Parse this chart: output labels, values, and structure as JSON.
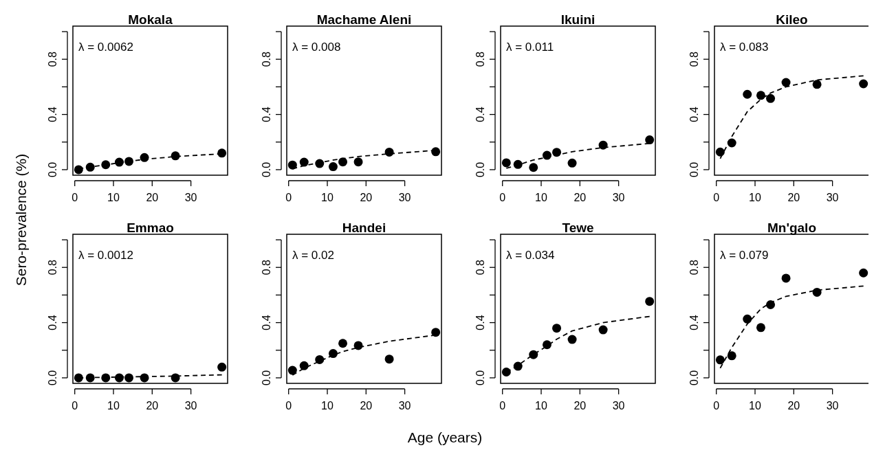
{
  "chart_data": [
    {
      "type": "scatter",
      "title": "Mokala",
      "ylabel": "Sero-prevalence (%)",
      "annotations": [
        "λ = 0.0062"
      ],
      "xlim": [
        -0.48,
        39.48
      ],
      "ylim": [
        -0.04,
        1.04
      ],
      "xticks": [
        0,
        10,
        20,
        30
      ],
      "yticks": [
        {
          "value": 0,
          "label": "0.0"
        },
        {
          "value": 0.2,
          "label": null
        },
        {
          "value": 0.4,
          "label": "0.4"
        },
        {
          "value": 0.6,
          "label": null
        },
        {
          "value": 0.8,
          "label": "0.8"
        },
        {
          "value": 1,
          "label": null
        }
      ],
      "x": [
        1,
        4,
        8,
        11.5,
        14,
        18,
        26,
        38
      ],
      "series": [
        {
          "marker": "circle",
          "color": "#000000",
          "values": [
            0.0,
            0.018,
            0.036,
            0.054,
            0.06,
            0.088,
            0.1,
            0.12
          ]
        },
        {
          "type": "line",
          "marker": "none",
          "color": "#000000",
          "line_style": "dashed",
          "values": [
            0.005,
            0.02,
            0.035,
            0.05,
            0.06,
            0.075,
            0.095,
            0.115
          ]
        }
      ]
    },
    {
      "type": "scatter",
      "title": "Machame Aleni",
      "annotations": [
        "λ = 0.008"
      ],
      "xlim": [
        -0.48,
        39.48
      ],
      "ylim": [
        -0.04,
        1.04
      ],
      "xticks": [
        0,
        10,
        20,
        30
      ],
      "yticks": [
        {
          "value": 0,
          "label": "0.0"
        },
        {
          "value": 0.2,
          "label": null
        },
        {
          "value": 0.4,
          "label": "0.4"
        },
        {
          "value": 0.6,
          "label": null
        },
        {
          "value": 0.8,
          "label": "0.8"
        },
        {
          "value": 1,
          "label": null
        }
      ],
      "x": [
        1,
        4,
        8,
        11.5,
        14,
        18,
        26,
        38
      ],
      "series": [
        {
          "marker": "circle",
          "color": "#000000",
          "values": [
            0.034,
            0.054,
            0.044,
            0.022,
            0.056,
            0.056,
            0.127,
            0.13
          ]
        },
        {
          "type": "line",
          "marker": "none",
          "color": "#000000",
          "line_style": "dashed",
          "values": [
            0.005,
            0.03,
            0.05,
            0.07,
            0.08,
            0.095,
            0.115,
            0.14
          ]
        }
      ]
    },
    {
      "type": "scatter",
      "title": "Ikuini",
      "annotations": [
        "λ = 0.011"
      ],
      "xlim": [
        -0.48,
        39.48
      ],
      "ylim": [
        -0.04,
        1.04
      ],
      "xticks": [
        0,
        10,
        20,
        30
      ],
      "yticks": [
        {
          "value": 0,
          "label": "0.0"
        },
        {
          "value": 0.2,
          "label": null
        },
        {
          "value": 0.4,
          "label": "0.4"
        },
        {
          "value": 0.6,
          "label": null
        },
        {
          "value": 0.8,
          "label": "0.8"
        },
        {
          "value": 1,
          "label": null
        }
      ],
      "x": [
        1,
        4,
        8,
        11.5,
        14,
        18,
        26,
        38
      ],
      "series": [
        {
          "marker": "circle",
          "color": "#000000",
          "values": [
            0.05,
            0.038,
            0.016,
            0.104,
            0.126,
            0.048,
            0.178,
            0.216
          ]
        },
        {
          "type": "line",
          "marker": "none",
          "color": "#000000",
          "line_style": "dashed",
          "values": [
            0.01,
            0.034,
            0.07,
            0.09,
            0.105,
            0.13,
            0.16,
            0.19
          ]
        }
      ]
    },
    {
      "type": "scatter",
      "title": "Kileo",
      "annotations": [
        "λ = 0.083"
      ],
      "xlim": [
        -0.48,
        39.48
      ],
      "ylim": [
        -0.04,
        1.04
      ],
      "xticks": [
        0,
        10,
        20,
        30
      ],
      "yticks": [
        {
          "value": 0,
          "label": "0.0"
        },
        {
          "value": 0.2,
          "label": null
        },
        {
          "value": 0.4,
          "label": "0.4"
        },
        {
          "value": 0.6,
          "label": null
        },
        {
          "value": 0.8,
          "label": "0.8"
        },
        {
          "value": 1,
          "label": null
        }
      ],
      "x": [
        1,
        4,
        8,
        11.5,
        14,
        18,
        26,
        38
      ],
      "series": [
        {
          "marker": "circle",
          "color": "#000000",
          "values": [
            0.128,
            0.194,
            0.546,
            0.538,
            0.516,
            0.632,
            0.618,
            0.622
          ]
        },
        {
          "type": "line",
          "marker": "none",
          "color": "#000000",
          "line_style": "dashed",
          "values": [
            0.08,
            0.24,
            0.42,
            0.51,
            0.555,
            0.6,
            0.65,
            0.68
          ]
        }
      ]
    },
    {
      "type": "scatter",
      "title": "Emmao",
      "annotations": [
        "λ = 0.0012"
      ],
      "xlim": [
        -0.48,
        39.48
      ],
      "ylim": [
        -0.04,
        1.04
      ],
      "xticks": [
        0,
        10,
        20,
        30
      ],
      "yticks": [
        {
          "value": 0,
          "label": "0.0"
        },
        {
          "value": 0.2,
          "label": null
        },
        {
          "value": 0.4,
          "label": "0.4"
        },
        {
          "value": 0.6,
          "label": null
        },
        {
          "value": 0.8,
          "label": "0.8"
        },
        {
          "value": 1,
          "label": null
        }
      ],
      "x": [
        1,
        4,
        8,
        11.5,
        14,
        18,
        26,
        38
      ],
      "series": [
        {
          "marker": "circle",
          "color": "#000000",
          "values": [
            0.0,
            0.0,
            0.0,
            0.0,
            0.0,
            0.0,
            0.0,
            0.078
          ]
        },
        {
          "type": "line",
          "marker": "none",
          "color": "#000000",
          "line_style": "dashed",
          "values": [
            0.0,
            0.002,
            0.004,
            0.006,
            0.007,
            0.009,
            0.013,
            0.022
          ]
        }
      ]
    },
    {
      "type": "scatter",
      "title": "Handei",
      "xlabel": "Age (years)",
      "annotations": [
        "λ = 0.02"
      ],
      "xlim": [
        -0.48,
        39.48
      ],
      "ylim": [
        -0.04,
        1.04
      ],
      "xticks": [
        0,
        10,
        20,
        30
      ],
      "yticks": [
        {
          "value": 0,
          "label": "0.0"
        },
        {
          "value": 0.2,
          "label": null
        },
        {
          "value": 0.4,
          "label": "0.4"
        },
        {
          "value": 0.6,
          "label": null
        },
        {
          "value": 0.8,
          "label": "0.8"
        },
        {
          "value": 1,
          "label": null
        }
      ],
      "x": [
        1,
        4,
        8,
        11.5,
        14,
        18,
        26,
        38
      ],
      "series": [
        {
          "marker": "circle",
          "color": "#000000",
          "values": [
            0.054,
            0.088,
            0.132,
            0.176,
            0.25,
            0.234,
            0.136,
            0.33
          ]
        },
        {
          "type": "line",
          "marker": "none",
          "color": "#000000",
          "line_style": "dashed",
          "values": [
            0.02,
            0.07,
            0.12,
            0.165,
            0.19,
            0.22,
            0.265,
            0.31
          ]
        }
      ]
    },
    {
      "type": "scatter",
      "title": "Tewe",
      "annotations": [
        "λ = 0.034"
      ],
      "xlim": [
        -0.48,
        39.48
      ],
      "ylim": [
        -0.04,
        1.04
      ],
      "xticks": [
        0,
        10,
        20,
        30
      ],
      "yticks": [
        {
          "value": 0,
          "label": "0.0"
        },
        {
          "value": 0.2,
          "label": null
        },
        {
          "value": 0.4,
          "label": "0.4"
        },
        {
          "value": 0.6,
          "label": null
        },
        {
          "value": 0.8,
          "label": "0.8"
        },
        {
          "value": 1,
          "label": null
        }
      ],
      "x": [
        1,
        4,
        8,
        11.5,
        14,
        18,
        26,
        38
      ],
      "series": [
        {
          "marker": "circle",
          "color": "#000000",
          "values": [
            0.042,
            0.084,
            0.168,
            0.24,
            0.36,
            0.278,
            0.348,
            0.554
          ]
        },
        {
          "type": "line",
          "marker": "none",
          "color": "#000000",
          "line_style": "dashed",
          "values": [
            0.04,
            0.09,
            0.17,
            0.23,
            0.28,
            0.34,
            0.4,
            0.445
          ]
        }
      ]
    },
    {
      "type": "scatter",
      "title": "Mn'galo",
      "annotations": [
        "λ = 0.079"
      ],
      "xlim": [
        -0.48,
        39.48
      ],
      "ylim": [
        -0.04,
        1.04
      ],
      "xticks": [
        0,
        10,
        20,
        30
      ],
      "yticks": [
        {
          "value": 0,
          "label": "0.0"
        },
        {
          "value": 0.2,
          "label": null
        },
        {
          "value": 0.4,
          "label": "0.4"
        },
        {
          "value": 0.6,
          "label": null
        },
        {
          "value": 0.8,
          "label": "0.8"
        },
        {
          "value": 1,
          "label": null
        }
      ],
      "x": [
        1,
        4,
        8,
        11.5,
        14,
        18,
        26,
        38
      ],
      "series": [
        {
          "marker": "circle",
          "color": "#000000",
          "values": [
            0.13,
            0.16,
            0.426,
            0.364,
            0.53,
            0.722,
            0.62,
            0.76
          ]
        },
        {
          "type": "line",
          "marker": "none",
          "color": "#000000",
          "line_style": "dashed",
          "values": [
            0.07,
            0.22,
            0.39,
            0.5,
            0.545,
            0.59,
            0.635,
            0.665
          ]
        }
      ]
    }
  ]
}
